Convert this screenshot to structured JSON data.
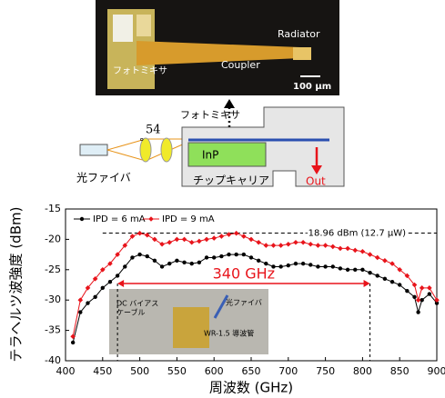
{
  "micrograph": {
    "labels": {
      "radiator": "Radiator",
      "photomixer": "フォトミキサ",
      "coupler": "Coupler",
      "scale": "100 µm"
    }
  },
  "diagram": {
    "labels": {
      "photomixer": "フォトミキサ",
      "angle": "54",
      "degree": "°",
      "inp": "InP",
      "fiber": "光ファイバ",
      "carrier": "チップキャリア",
      "out": "Out"
    }
  },
  "inset": {
    "labels": {
      "dc_cable": [
        "DC バイアス",
        "ケーブル"
      ],
      "fiber": "光ファイバ",
      "waveguide": "WR-1.5 導波管"
    }
  },
  "chart_data": {
    "type": "line",
    "x_label": "周波数 (GHz)",
    "y_label": "テラヘルツ波強度 (dBm)",
    "x": [
      410,
      420,
      430,
      440,
      450,
      460,
      470,
      480,
      490,
      500,
      510,
      520,
      530,
      540,
      550,
      560,
      570,
      580,
      590,
      600,
      610,
      620,
      630,
      640,
      650,
      660,
      670,
      680,
      690,
      700,
      710,
      720,
      730,
      740,
      750,
      760,
      770,
      780,
      790,
      800,
      810,
      820,
      830,
      840,
      850,
      860,
      870,
      875,
      880,
      890,
      900
    ],
    "series": [
      {
        "name": "IPD = 6 mA",
        "color": "#000000",
        "marker": "circle",
        "values": [
          -37,
          -32,
          -30.5,
          -29.5,
          -28,
          -27,
          -26,
          -24.5,
          -23,
          -22.5,
          -22.8,
          -23.5,
          -24.5,
          -24,
          -23.5,
          -23.8,
          -24,
          -23.8,
          -23,
          -23,
          -22.8,
          -22.5,
          -22.5,
          -22.5,
          -23,
          -23.5,
          -24,
          -24.5,
          -24.5,
          -24.3,
          -24,
          -24,
          -24.2,
          -24.5,
          -24.5,
          -24.5,
          -24.8,
          -25,
          -25,
          -25,
          -25.5,
          -26,
          -26.5,
          -27,
          -27.5,
          -28.5,
          -29.5,
          -32,
          -30,
          -29,
          -30.5
        ]
      },
      {
        "name": "IPD = 9 mA",
        "color": "#e8141b",
        "marker": "diamond",
        "values": [
          -36,
          -30,
          -28,
          -26.5,
          -25,
          -24,
          -22.5,
          -21,
          -19.5,
          -19,
          -19.3,
          -20,
          -20.8,
          -20.5,
          -20,
          -20,
          -20.5,
          -20.3,
          -20,
          -19.8,
          -19.5,
          -19.2,
          -19,
          -19.5,
          -20,
          -20.5,
          -21,
          -21,
          -21,
          -20.8,
          -20.5,
          -20.5,
          -20.8,
          -21,
          -21,
          -21.2,
          -21.5,
          -21.5,
          -21.8,
          -22,
          -22.5,
          -23,
          -23.5,
          -24,
          -25,
          -26,
          -27.5,
          -30,
          -28,
          -28,
          -30
        ]
      }
    ],
    "xlim": [
      400,
      900
    ],
    "xticks": [
      400,
      450,
      500,
      550,
      600,
      650,
      700,
      750,
      800,
      850,
      900
    ],
    "ylim": [
      -40,
      -15
    ],
    "yticks": [
      -40,
      -35,
      -30,
      -25,
      -20,
      -15
    ],
    "reference": {
      "value": -18.96,
      "label": "-18.96 dBm (12.7 µW)"
    },
    "band": {
      "from": 470,
      "to": 810,
      "label": "340 GHz",
      "color": "#e8141b"
    },
    "legend": "top-left"
  }
}
